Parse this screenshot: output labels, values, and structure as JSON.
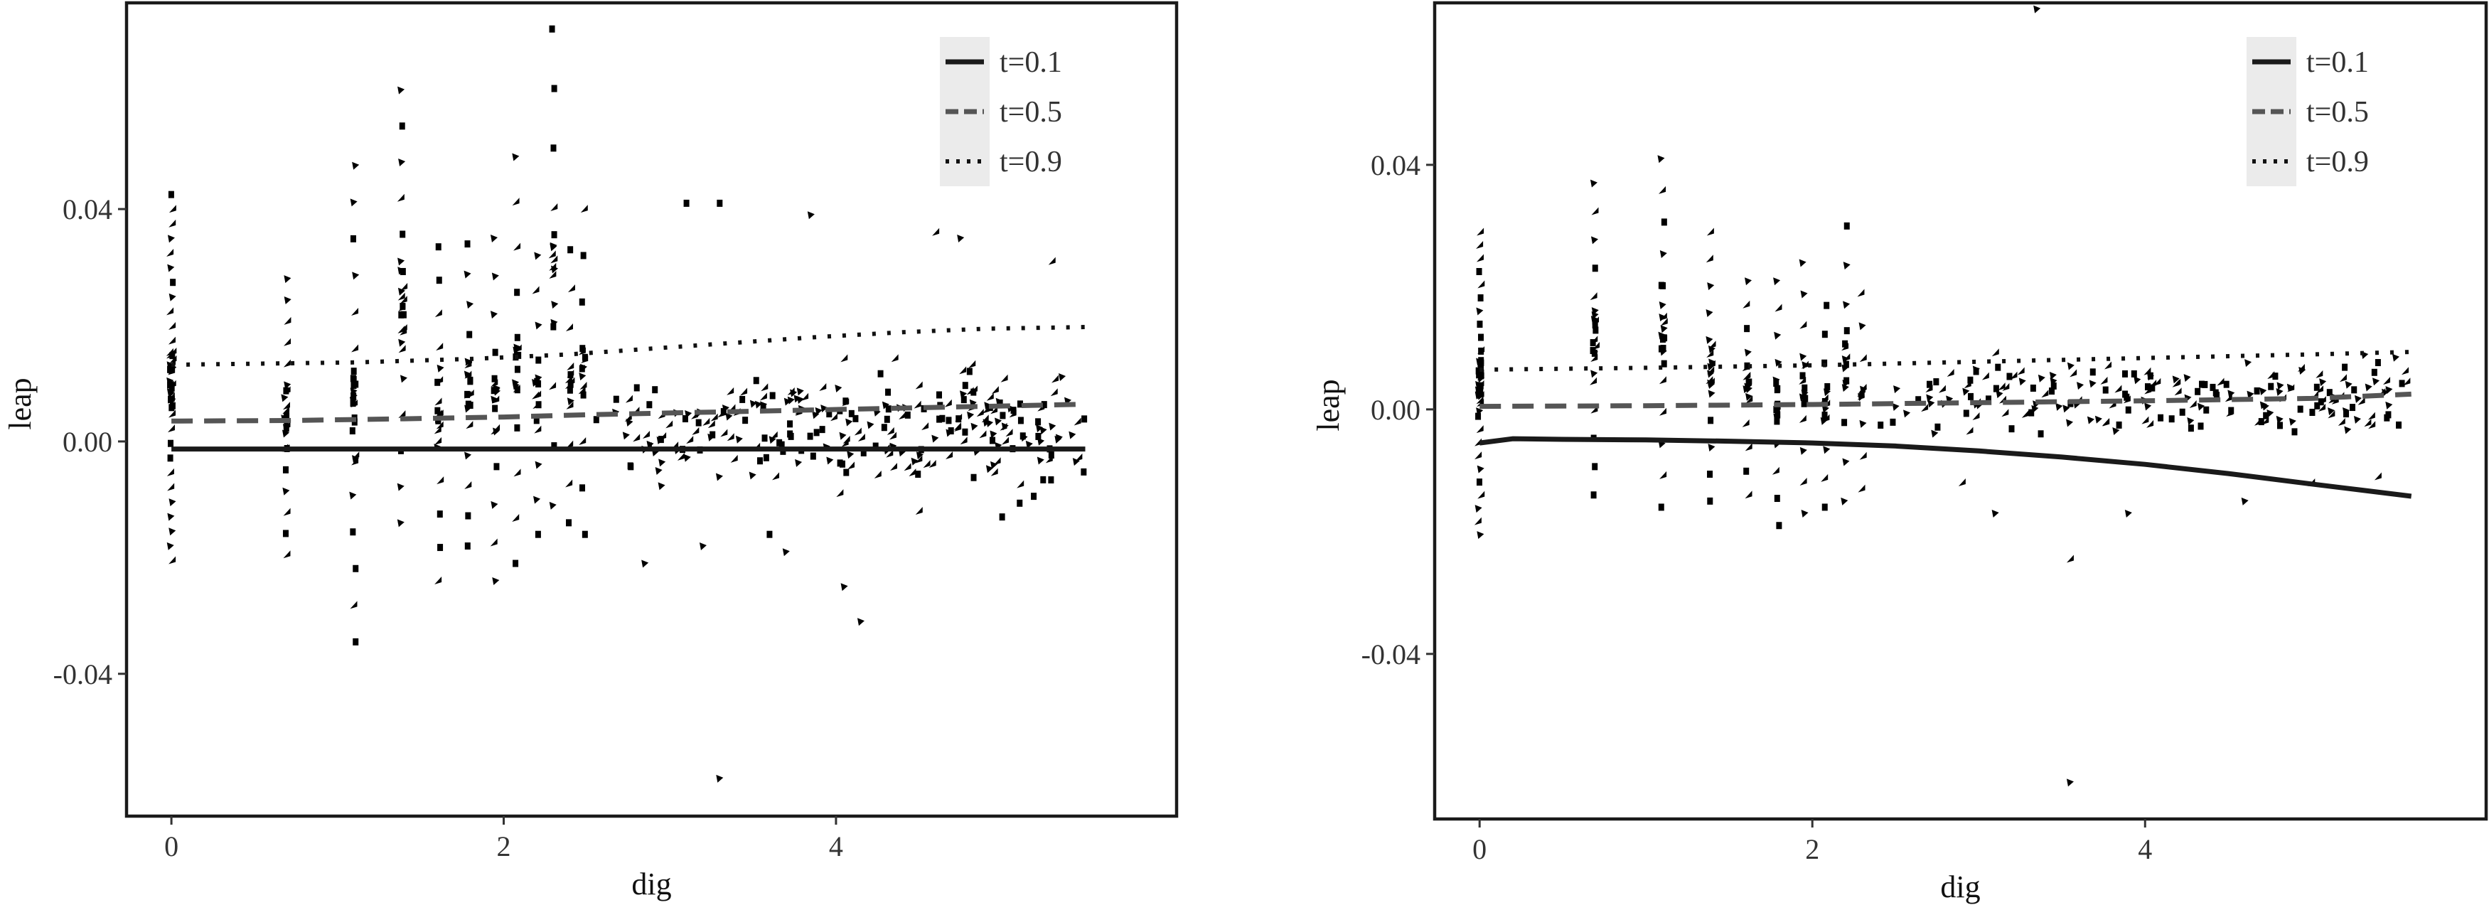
{
  "figure": {
    "background": "#ffffff",
    "text_color": "#333333",
    "legend_key_background": "#ebebeb"
  },
  "chart_data": [
    {
      "type": "scatter",
      "panel": "left",
      "xlabel": "dig",
      "ylabel": "leap",
      "xlim": [
        -0.27,
        6.05
      ],
      "ylim": [
        -0.0645,
        0.0755
      ],
      "x_ticks": [
        0,
        2,
        4
      ],
      "x_tick_labels": [
        "0",
        "2",
        "4"
      ],
      "y_ticks": [
        -0.04,
        0.0,
        0.04
      ],
      "y_tick_labels": [
        "-0.04",
        "0.00",
        "0.04"
      ],
      "grid": false,
      "legend": {
        "placement": "top-right",
        "entries": [
          {
            "label": "t=0.1",
            "linetype": "solid",
            "color": "#1a1a1a"
          },
          {
            "label": "t=0.5",
            "linetype": "dashed",
            "color": "#555555"
          },
          {
            "label": "t=0.9",
            "linetype": "dotted",
            "color": "#111111"
          }
        ]
      },
      "series": [
        {
          "name": "t=0.1",
          "linetype": "solid",
          "color": "#1a1a1a",
          "x": [
            0,
            5.5
          ],
          "y": [
            -0.0013,
            -0.0013
          ]
        },
        {
          "name": "t=0.5",
          "linetype": "dashed",
          "color": "#555555",
          "x": [
            0,
            0.7,
            1.4,
            2.0,
            2.5,
            3.0,
            3.5,
            4.0,
            4.5,
            5.0,
            5.5
          ],
          "y": [
            0.0035,
            0.0036,
            0.0039,
            0.0042,
            0.0046,
            0.0049,
            0.0052,
            0.0055,
            0.0058,
            0.0061,
            0.0064
          ]
        },
        {
          "name": "t=0.9",
          "linetype": "dotted",
          "color": "#111111",
          "x": [
            0,
            1.1,
            1.8,
            2.4,
            2.9,
            3.4,
            3.9,
            4.4,
            4.9,
            5.5
          ],
          "y": [
            0.0132,
            0.0136,
            0.0142,
            0.015,
            0.016,
            0.017,
            0.018,
            0.0188,
            0.0194,
            0.0197
          ]
        }
      ],
      "scatter_clusters": [
        {
          "x": 0.0,
          "y_min": -0.0205,
          "y_max": 0.0425,
          "n": 26
        },
        {
          "x": 0.69,
          "y_min": -0.0195,
          "y_max": 0.028,
          "n": 14
        },
        {
          "x": 1.1,
          "y_min": -0.0345,
          "y_max": 0.0475,
          "n": 14
        },
        {
          "x": 1.39,
          "y_min": -0.014,
          "y_max": 0.0605,
          "n": 13
        },
        {
          "x": 1.61,
          "y_min": -0.024,
          "y_max": 0.0335,
          "n": 11
        },
        {
          "x": 1.79,
          "y_min": -0.018,
          "y_max": 0.034,
          "n": 11
        },
        {
          "x": 1.95,
          "y_min": -0.024,
          "y_max": 0.035,
          "n": 10
        },
        {
          "x": 2.08,
          "y_min": -0.021,
          "y_max": 0.049,
          "n": 10
        },
        {
          "x": 2.2,
          "y_min": -0.016,
          "y_max": 0.032,
          "n": 9
        },
        {
          "x": 2.3,
          "y_min": -0.011,
          "y_max": 0.071,
          "n": 9
        },
        {
          "x": 2.4,
          "y_min": -0.014,
          "y_max": 0.033,
          "n": 8
        },
        {
          "x": 2.48,
          "y_min": -0.016,
          "y_max": 0.04,
          "n": 8
        }
      ],
      "scatter_cloud": {
        "x_range": [
          2.55,
          5.5
        ],
        "y_center": 0.003,
        "y_spread": 0.012,
        "n": 260
      },
      "scatter_points": [
        [
          3.3,
          -0.058
        ],
        [
          4.15,
          -0.031
        ],
        [
          4.05,
          -0.025
        ],
        [
          3.7,
          -0.019
        ],
        [
          2.85,
          -0.021
        ],
        [
          3.1,
          0.041
        ],
        [
          3.3,
          0.041
        ],
        [
          3.85,
          0.039
        ],
        [
          4.75,
          0.035
        ],
        [
          5.3,
          0.031
        ],
        [
          4.6,
          0.036
        ],
        [
          3.6,
          -0.016
        ],
        [
          4.5,
          -0.012
        ],
        [
          3.2,
          -0.018
        ],
        [
          5.0,
          -0.013
        ]
      ]
    },
    {
      "type": "scatter",
      "panel": "right",
      "xlabel": "dig",
      "ylabel": "leap",
      "xlim": [
        -0.27,
        6.05
      ],
      "ylim": [
        -0.067,
        0.0665
      ],
      "x_ticks": [
        0,
        2,
        4
      ],
      "x_tick_labels": [
        "0",
        "2",
        "4"
      ],
      "y_ticks": [
        -0.04,
        0.0,
        0.04
      ],
      "y_tick_labels": [
        "-0.04",
        "0.00",
        "0.04"
      ],
      "grid": false,
      "legend": {
        "placement": "top-right",
        "entries": [
          {
            "label": "t=0.1",
            "linetype": "solid",
            "color": "#1a1a1a"
          },
          {
            "label": "t=0.5",
            "linetype": "dashed",
            "color": "#555555"
          },
          {
            "label": "t=0.9",
            "linetype": "dotted",
            "color": "#111111"
          }
        ]
      },
      "series": [
        {
          "name": "t=0.1",
          "linetype": "solid",
          "color": "#1a1a1a",
          "x": [
            0,
            0.2,
            0.5,
            1.0,
            1.5,
            2.0,
            2.5,
            3.0,
            3.5,
            4.0,
            4.5,
            5.0,
            5.3,
            5.6
          ],
          "y": [
            -0.0055,
            -0.0048,
            -0.0049,
            -0.005,
            -0.0052,
            -0.0055,
            -0.006,
            -0.0068,
            -0.0078,
            -0.009,
            -0.0105,
            -0.0122,
            -0.0132,
            -0.0142
          ]
        },
        {
          "name": "t=0.5",
          "linetype": "dashed",
          "color": "#555555",
          "x": [
            0,
            1.0,
            2.0,
            3.0,
            4.0,
            5.0,
            5.6
          ],
          "y": [
            0.0005,
            0.0006,
            0.0008,
            0.0011,
            0.0014,
            0.0018,
            0.0025
          ]
        },
        {
          "name": "t=0.9",
          "linetype": "dotted",
          "color": "#111111",
          "x": [
            0,
            1.0,
            2.0,
            3.0,
            4.0,
            5.0,
            5.6
          ],
          "y": [
            0.0065,
            0.0068,
            0.0072,
            0.0078,
            0.0084,
            0.009,
            0.0094
          ]
        }
      ],
      "scatter_clusters": [
        {
          "x": 0.0,
          "y_min": -0.0205,
          "y_max": 0.029,
          "n": 24
        },
        {
          "x": 0.69,
          "y_min": -0.014,
          "y_max": 0.037,
          "n": 12
        },
        {
          "x": 1.1,
          "y_min": -0.016,
          "y_max": 0.041,
          "n": 12
        },
        {
          "x": 1.39,
          "y_min": -0.015,
          "y_max": 0.029,
          "n": 11
        },
        {
          "x": 1.61,
          "y_min": -0.014,
          "y_max": 0.021,
          "n": 10
        },
        {
          "x": 1.79,
          "y_min": -0.019,
          "y_max": 0.021,
          "n": 10
        },
        {
          "x": 1.95,
          "y_min": -0.017,
          "y_max": 0.024,
          "n": 9
        },
        {
          "x": 2.08,
          "y_min": -0.016,
          "y_max": 0.017,
          "n": 8
        },
        {
          "x": 2.2,
          "y_min": -0.015,
          "y_max": 0.03,
          "n": 8
        },
        {
          "x": 2.3,
          "y_min": -0.013,
          "y_max": 0.019,
          "n": 7
        }
      ],
      "scatter_cloud": {
        "x_range": [
          2.4,
          5.6
        ],
        "y_center": 0.002,
        "y_spread": 0.007,
        "n": 200
      },
      "scatter_points": [
        [
          3.35,
          0.0655
        ],
        [
          3.55,
          -0.061
        ],
        [
          3.55,
          -0.0245
        ],
        [
          3.9,
          -0.017
        ],
        [
          4.6,
          -0.015
        ],
        [
          5.0,
          -0.012
        ],
        [
          5.4,
          -0.011
        ],
        [
          2.9,
          -0.012
        ],
        [
          3.1,
          -0.017
        ]
      ]
    }
  ]
}
